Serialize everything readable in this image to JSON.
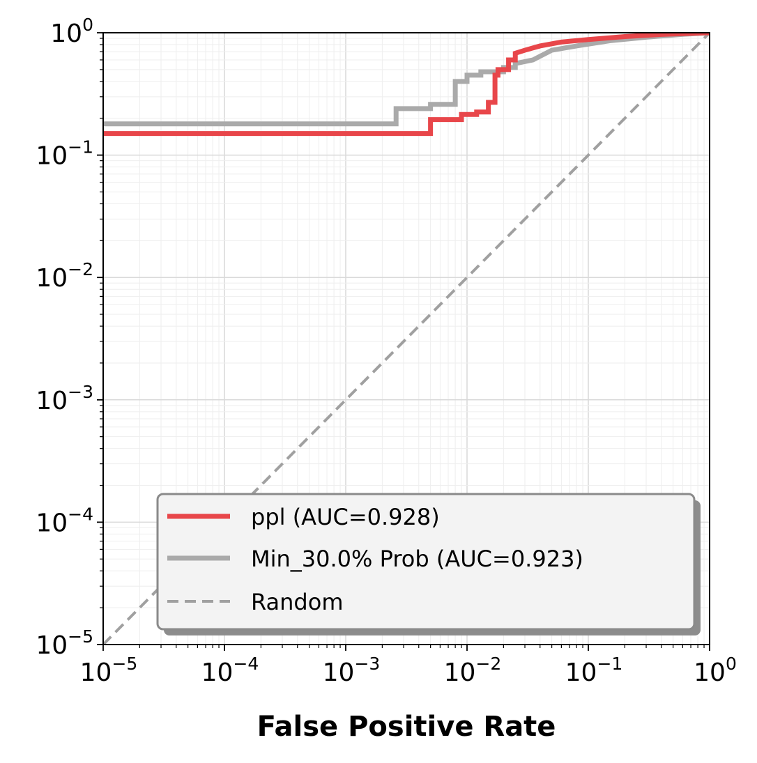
{
  "chart_data": {
    "type": "line",
    "title": "",
    "xlabel": "False Positive Rate",
    "ylabel": "",
    "xscale": "log",
    "yscale": "log",
    "xlim": [
      1e-05,
      1
    ],
    "ylim": [
      1e-05,
      1
    ],
    "grid": true,
    "legend_position": "lower-right",
    "x_ticks": [
      {
        "base": "10",
        "exp": "−5"
      },
      {
        "base": "10",
        "exp": "−4"
      },
      {
        "base": "10",
        "exp": "−3"
      },
      {
        "base": "10",
        "exp": "−2"
      },
      {
        "base": "10",
        "exp": "−1"
      },
      {
        "base": "10",
        "exp": "0"
      }
    ],
    "y_ticks": [
      {
        "base": "10",
        "exp": "−5"
      },
      {
        "base": "10",
        "exp": "−4"
      },
      {
        "base": "10",
        "exp": "−3"
      },
      {
        "base": "10",
        "exp": "−2"
      },
      {
        "base": "10",
        "exp": "−1"
      },
      {
        "base": "10",
        "exp": "0"
      }
    ],
    "series": [
      {
        "name": "ppl (AUC=0.928)",
        "color": "#e8464a",
        "style": "solid",
        "x": [
          1e-05,
          0.005,
          0.005,
          0.009,
          0.009,
          0.012,
          0.012,
          0.015,
          0.015,
          0.017,
          0.017,
          0.018,
          0.018,
          0.022,
          0.022,
          0.025,
          0.025,
          0.03,
          0.04,
          0.06,
          0.1,
          0.2,
          0.4,
          1
        ],
        "y": [
          0.15,
          0.15,
          0.195,
          0.195,
          0.215,
          0.215,
          0.225,
          0.225,
          0.27,
          0.27,
          0.45,
          0.45,
          0.5,
          0.5,
          0.6,
          0.6,
          0.68,
          0.72,
          0.78,
          0.84,
          0.88,
          0.93,
          0.97,
          1
        ]
      },
      {
        "name": "Min_30.0% Prob (AUC=0.923)",
        "color": "#aaaaaa",
        "style": "solid",
        "x": [
          1e-05,
          0.0026,
          0.0026,
          0.005,
          0.005,
          0.008,
          0.008,
          0.01,
          0.01,
          0.013,
          0.013,
          0.02,
          0.02,
          0.025,
          0.025,
          0.035,
          0.05,
          0.08,
          0.15,
          0.3,
          0.6,
          1
        ],
        "y": [
          0.18,
          0.18,
          0.24,
          0.24,
          0.26,
          0.26,
          0.4,
          0.4,
          0.45,
          0.45,
          0.48,
          0.48,
          0.52,
          0.52,
          0.56,
          0.6,
          0.72,
          0.78,
          0.86,
          0.92,
          0.97,
          1
        ]
      },
      {
        "name": "Random",
        "color": "#a0a0a0",
        "style": "dashed",
        "x": [
          1e-05,
          1
        ],
        "y": [
          1e-05,
          1
        ]
      }
    ]
  }
}
